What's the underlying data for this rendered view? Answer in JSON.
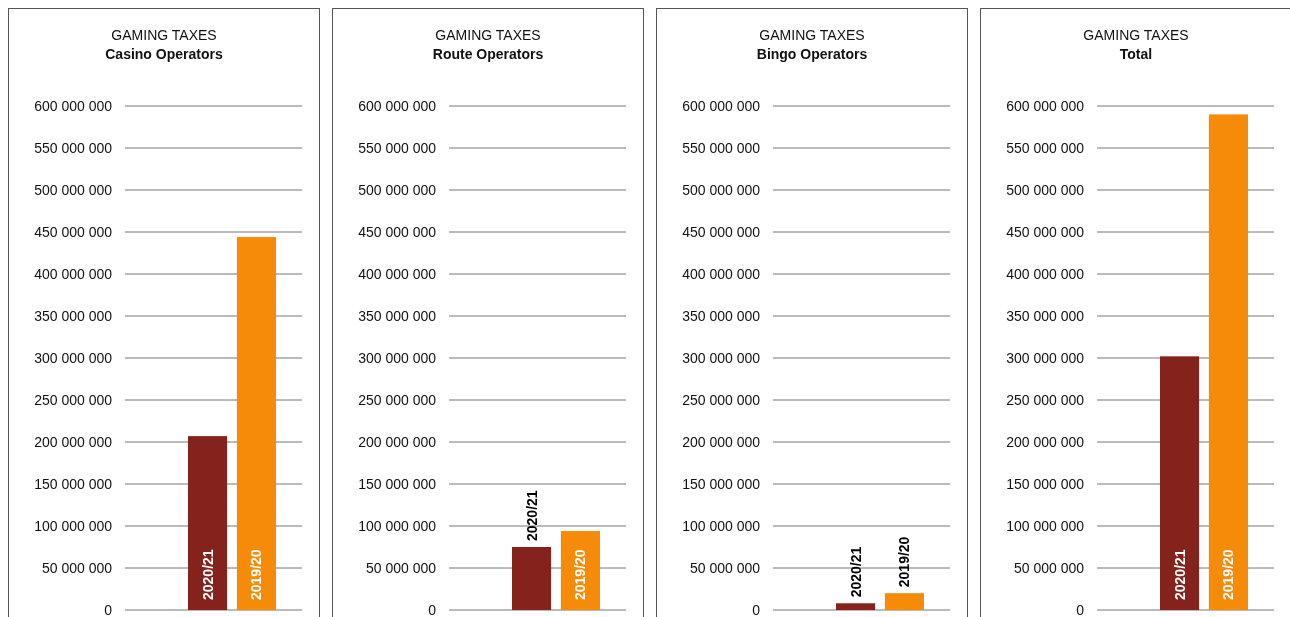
{
  "chart_data": [
    {
      "type": "bar",
      "title": "GAMING TAXES",
      "subtitle": "Casino Operators",
      "categories": [
        "2020/21",
        "2019/20"
      ],
      "values": [
        207000000,
        444000000
      ],
      "colors": [
        "#84231c",
        "#f68b0a"
      ],
      "ylim": [
        0,
        600000000
      ],
      "yticks": [
        {
          "value": 0,
          "label": "0"
        },
        {
          "value": 50000000,
          "label": "50 000 000"
        },
        {
          "value": 100000000,
          "label": "100 000 000"
        },
        {
          "value": 150000000,
          "label": "150 000 000"
        },
        {
          "value": 200000000,
          "label": "200 000 000"
        },
        {
          "value": 250000000,
          "label": "250 000 000"
        },
        {
          "value": 300000000,
          "label": "300 000 000"
        },
        {
          "value": 350000000,
          "label": "350 000 000"
        },
        {
          "value": 400000000,
          "label": "400 000 000"
        },
        {
          "value": 450000000,
          "label": "450 000 000"
        },
        {
          "value": 500000000,
          "label": "500 000 000"
        },
        {
          "value": 550000000,
          "label": "550 000 000"
        },
        {
          "value": 600000000,
          "label": "600 000 000"
        }
      ],
      "grid": "y"
    },
    {
      "type": "bar",
      "title": "GAMING TAXES",
      "subtitle": "Route Operators",
      "categories": [
        "2020/21",
        "2019/20"
      ],
      "values": [
        75000000,
        94000000
      ],
      "colors": [
        "#84231c",
        "#f68b0a"
      ],
      "ylim": [
        0,
        600000000
      ],
      "yticks": [
        {
          "value": 0,
          "label": "0"
        },
        {
          "value": 50000000,
          "label": "50 000 000"
        },
        {
          "value": 100000000,
          "label": "100 000 000"
        },
        {
          "value": 150000000,
          "label": "150 000 000"
        },
        {
          "value": 200000000,
          "label": "200 000 000"
        },
        {
          "value": 250000000,
          "label": "250 000 000"
        },
        {
          "value": 300000000,
          "label": "300 000 000"
        },
        {
          "value": 350000000,
          "label": "350 000 000"
        },
        {
          "value": 400000000,
          "label": "400 000 000"
        },
        {
          "value": 450000000,
          "label": "450 000 000"
        },
        {
          "value": 500000000,
          "label": "500 000 000"
        },
        {
          "value": 550000000,
          "label": "550 000 000"
        },
        {
          "value": 600000000,
          "label": "600 000 000"
        }
      ],
      "grid": "y"
    },
    {
      "type": "bar",
      "title": "GAMING TAXES",
      "subtitle": "Bingo Operators",
      "categories": [
        "2020/21",
        "2019/20"
      ],
      "values": [
        8000000,
        20000000
      ],
      "colors": [
        "#84231c",
        "#f68b0a"
      ],
      "ylim": [
        0,
        600000000
      ],
      "yticks": [
        {
          "value": 0,
          "label": "0"
        },
        {
          "value": 50000000,
          "label": "50 000 000"
        },
        {
          "value": 100000000,
          "label": "100 000 000"
        },
        {
          "value": 150000000,
          "label": "150 000 000"
        },
        {
          "value": 200000000,
          "label": "200 000 000"
        },
        {
          "value": 250000000,
          "label": "250 000 000"
        },
        {
          "value": 300000000,
          "label": "300 000 000"
        },
        {
          "value": 350000000,
          "label": "350 000 000"
        },
        {
          "value": 400000000,
          "label": "400 000 000"
        },
        {
          "value": 450000000,
          "label": "450 000 000"
        },
        {
          "value": 500000000,
          "label": "500 000 000"
        },
        {
          "value": 550000000,
          "label": "550 000 000"
        },
        {
          "value": 600000000,
          "label": "600 000 000"
        }
      ],
      "grid": "y"
    },
    {
      "type": "bar",
      "title": "GAMING TAXES",
      "subtitle": "Total",
      "categories": [
        "2020/21",
        "2019/20"
      ],
      "values": [
        302000000,
        590000000
      ],
      "colors": [
        "#84231c",
        "#f68b0a"
      ],
      "ylim": [
        0,
        600000000
      ],
      "yticks": [
        {
          "value": 0,
          "label": "0"
        },
        {
          "value": 50000000,
          "label": "50 000 000"
        },
        {
          "value": 100000000,
          "label": "100 000 000"
        },
        {
          "value": 150000000,
          "label": "150 000 000"
        },
        {
          "value": 200000000,
          "label": "200 000 000"
        },
        {
          "value": 250000000,
          "label": "250 000 000"
        },
        {
          "value": 300000000,
          "label": "300 000 000"
        },
        {
          "value": 350000000,
          "label": "350 000 000"
        },
        {
          "value": 400000000,
          "label": "400 000 000"
        },
        {
          "value": 450000000,
          "label": "450 000 000"
        },
        {
          "value": 500000000,
          "label": "500 000 000"
        },
        {
          "value": 550000000,
          "label": "550 000 000"
        },
        {
          "value": 600000000,
          "label": "600 000 000"
        }
      ],
      "grid": "y"
    }
  ]
}
